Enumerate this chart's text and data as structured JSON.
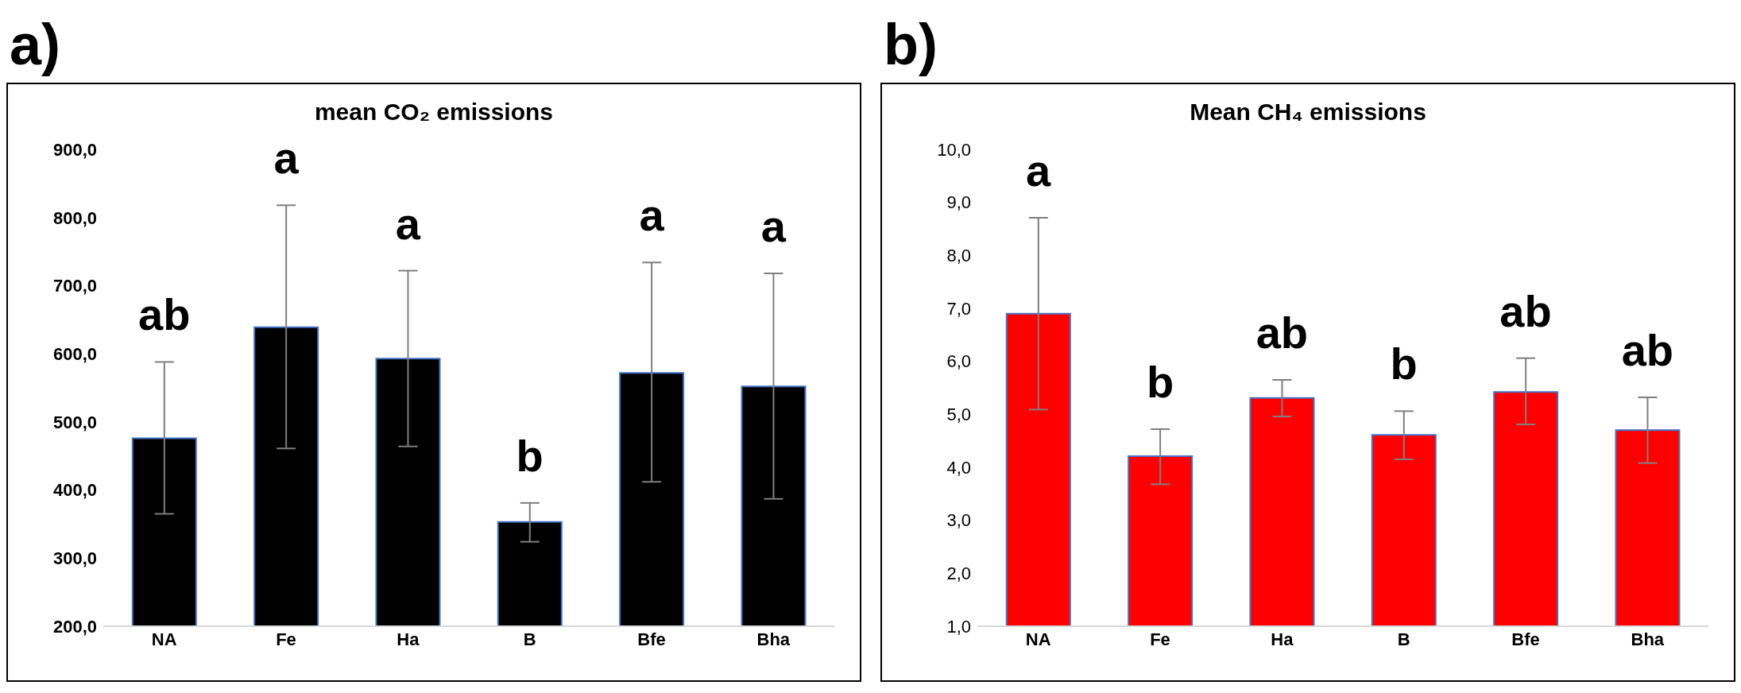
{
  "chart_data": [
    {
      "type": "bar",
      "title": "mean CO₂ emissions",
      "categories": [
        "NA",
        "Fe",
        "Ha",
        "B",
        "Bfe",
        "Bha"
      ],
      "series": [
        {
          "color": "#000000",
          "values": [
            476,
            639,
            593,
            353,
            572,
            552
          ],
          "errors": [
            [
              365,
              588
            ],
            [
              461,
              818
            ],
            [
              464,
              722
            ],
            [
              324,
              381
            ],
            [
              412,
              734
            ],
            [
              387,
              718
            ]
          ]
        }
      ],
      "ylim": [
        200,
        900
      ],
      "yticks": [
        {
          "value": 200,
          "label": "200,0"
        },
        {
          "value": 300,
          "label": "300,0"
        },
        {
          "value": 400,
          "label": "400,0"
        },
        {
          "value": 500,
          "label": "500,0"
        },
        {
          "value": 600,
          "label": "600,0"
        },
        {
          "value": 700,
          "label": "700,0"
        },
        {
          "value": 800,
          "label": "800,0"
        },
        {
          "value": 900,
          "label": "900,0"
        }
      ],
      "grid": false,
      "legend": false,
      "annotations": [
        "a)",
        "ab",
        "a",
        "a",
        "b",
        "a",
        "a"
      ]
    },
    {
      "type": "bar",
      "title": "Mean CH₄ emissions",
      "categories": [
        "NA",
        "Fe",
        "Ha",
        "B",
        "Bfe",
        "Bha"
      ],
      "series": [
        {
          "color": "#ff0000",
          "values": [
            6.9,
            4.21,
            5.31,
            4.61,
            5.42,
            4.7
          ],
          "errors": [
            [
              5.09,
              8.71
            ],
            [
              3.68,
              4.72
            ],
            [
              4.96,
              5.65
            ],
            [
              4.15,
              5.06
            ],
            [
              4.81,
              6.06
            ],
            [
              4.08,
              5.32
            ]
          ]
        }
      ],
      "ylim": [
        1,
        10
      ],
      "yticks": [
        {
          "value": 1,
          "label": "1,0"
        },
        {
          "value": 2,
          "label": "2,0"
        },
        {
          "value": 3,
          "label": "3,0"
        },
        {
          "value": 4,
          "label": "4,0"
        },
        {
          "value": 5,
          "label": "5,0"
        },
        {
          "value": 6,
          "label": "6,0"
        },
        {
          "value": 7,
          "label": "7,0"
        },
        {
          "value": 8,
          "label": "8,0"
        },
        {
          "value": 9,
          "label": "9,0"
        },
        {
          "value": 10,
          "label": "10,0"
        }
      ],
      "grid": false,
      "legend": false,
      "annotations": [
        "b)",
        "a",
        "b",
        "ab",
        "b",
        "ab",
        "ab"
      ]
    }
  ]
}
